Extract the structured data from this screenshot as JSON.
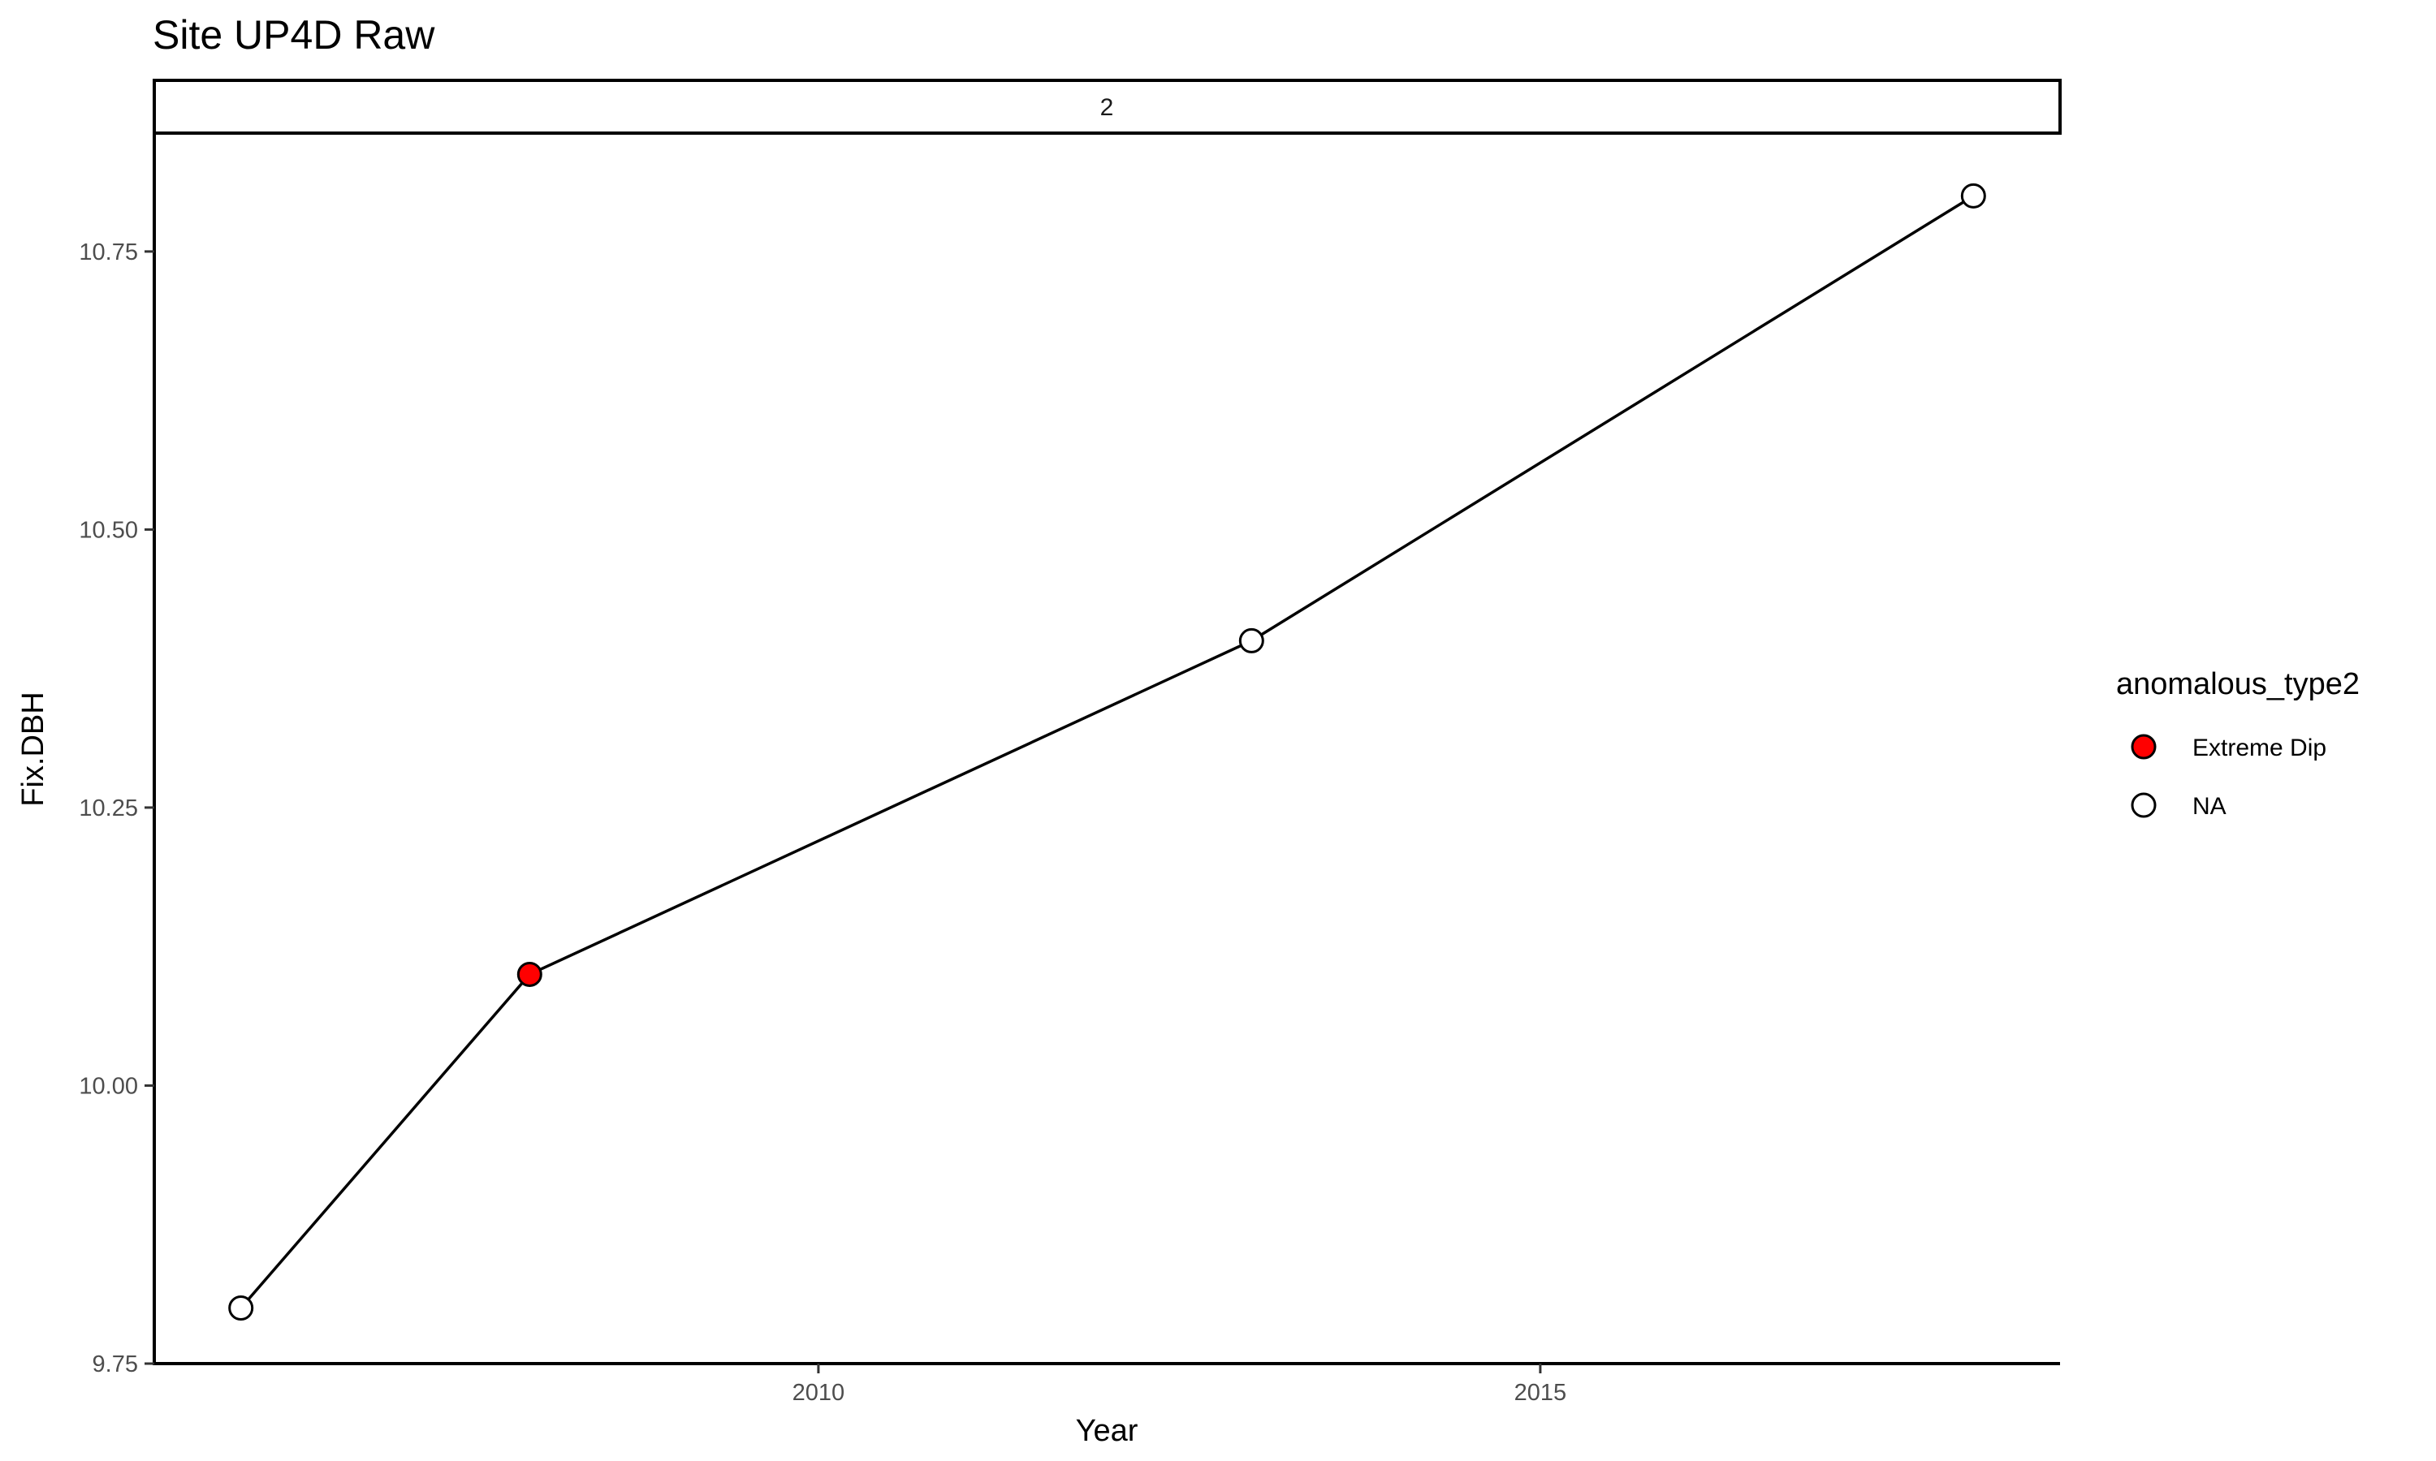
{
  "chart_data": {
    "type": "line",
    "title": "Site UP4D Raw",
    "facet_label": "2",
    "xlabel": "Year",
    "ylabel": "Fix.DBH",
    "xlim": [
      2005.4,
      2018.6
    ],
    "ylim": [
      9.75,
      10.855
    ],
    "x_ticks": [
      2010,
      2015
    ],
    "x_tick_labels": [
      "2010",
      "2015"
    ],
    "y_ticks": [
      9.75,
      10.0,
      10.25,
      10.5,
      10.75
    ],
    "y_tick_labels": [
      "9.75",
      "10.00",
      "10.25",
      "10.50",
      "10.75"
    ],
    "grid": false,
    "legend": {
      "title": "anomalous_type2",
      "position": "right",
      "entries": [
        {
          "label": "Extreme Dip",
          "fill": "#ff0000"
        },
        {
          "label": "NA",
          "fill": "#ffffff"
        }
      ]
    },
    "series": [
      {
        "points": [
          {
            "x": 2006,
            "y": 9.8,
            "type": "NA"
          },
          {
            "x": 2008,
            "y": 10.1,
            "type": "Extreme Dip"
          },
          {
            "x": 2013,
            "y": 10.4,
            "type": "NA"
          },
          {
            "x": 2018,
            "y": 10.8,
            "type": "NA"
          }
        ]
      }
    ],
    "colors": {
      "line": "#000000",
      "extreme_dip": "#ff0000",
      "na": "#ffffff"
    }
  }
}
